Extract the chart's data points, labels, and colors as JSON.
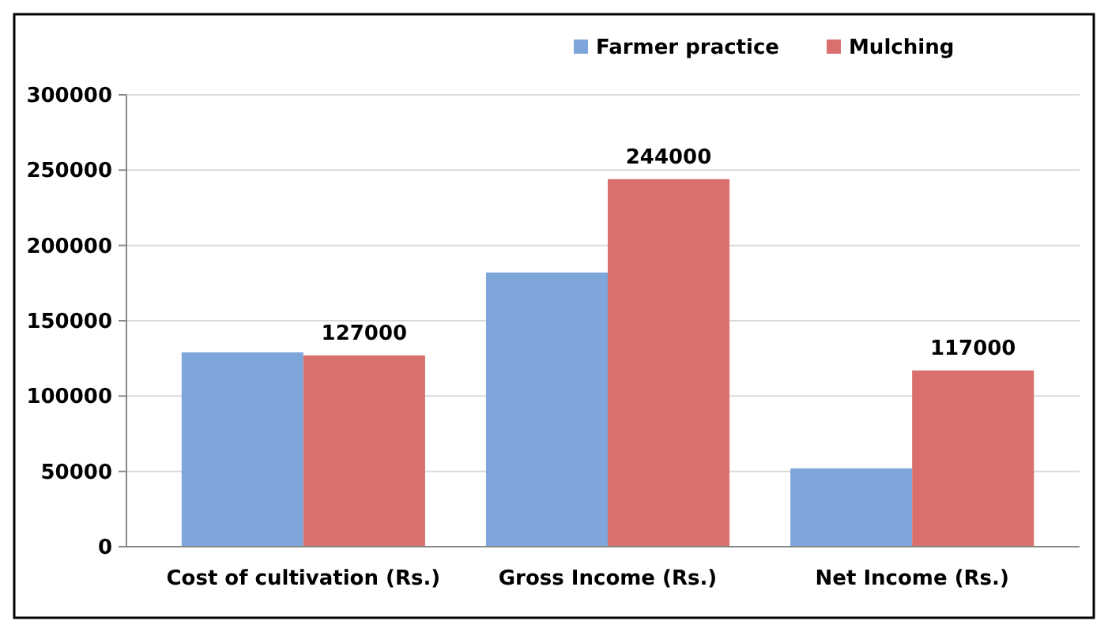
{
  "chart_data": {
    "type": "bar",
    "categories": [
      "Cost of cultivation (Rs.)",
      "Gross Income (Rs.)",
      "Net Income (Rs.)"
    ],
    "series": [
      {
        "name": "Farmer practice",
        "color": "#7ea6da",
        "values": [
          129000,
          182000,
          52000
        ]
      },
      {
        "name": "Mulching",
        "color": "#d9706e",
        "values": [
          127000,
          244000,
          117000
        ],
        "value_labels": [
          "127000",
          "244000",
          "117000"
        ]
      }
    ],
    "ylim": [
      0,
      300000
    ],
    "yticks": [
      0,
      50000,
      100000,
      150000,
      200000,
      250000,
      300000
    ],
    "grid": "y",
    "legend": "top right"
  }
}
